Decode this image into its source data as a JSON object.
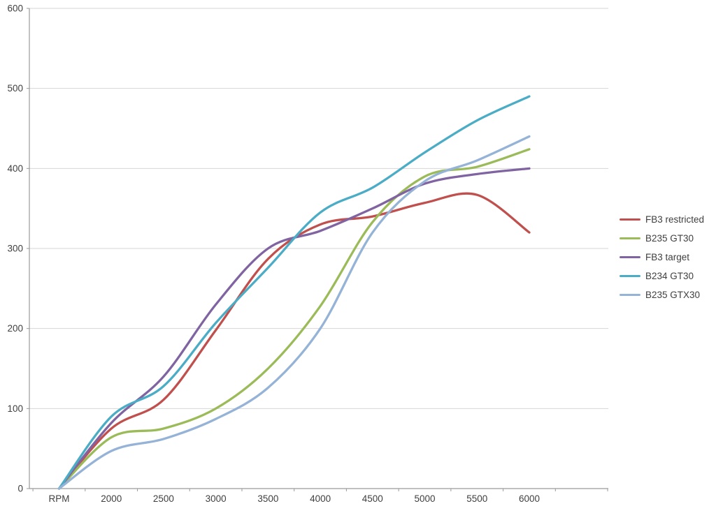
{
  "chart_data": {
    "type": "line",
    "title": "",
    "xlabel": "",
    "ylabel": "",
    "categories": [
      "RPM",
      "2000",
      "2500",
      "3000",
      "3500",
      "4000",
      "4500",
      "5000",
      "5500",
      "6000"
    ],
    "y_ticks": [
      "0",
      "100",
      "200",
      "300",
      "400",
      "500",
      "600"
    ],
    "ylim": [
      0,
      600
    ],
    "grid": true,
    "smoothed_lines": true,
    "legend_position": "right",
    "axis_color": "#9a9a9a",
    "gridline_color": "#d6d6d6",
    "label_color": "#3f3f3f",
    "series": [
      {
        "name": "FB3 restricted",
        "color": "#c0504d",
        "values": [
          0,
          75,
          111,
          198,
          287,
          330,
          340,
          357,
          367,
          320
        ]
      },
      {
        "name": "B235 GT30",
        "color": "#9bbb59",
        "values": [
          0,
          64,
          75,
          100,
          150,
          228,
          333,
          390,
          402,
          424
        ]
      },
      {
        "name": "FB3 target",
        "color": "#8064a2",
        "values": [
          0,
          82,
          140,
          230,
          300,
          322,
          350,
          381,
          393,
          400
        ]
      },
      {
        "name": "B234 GT30",
        "color": "#4bacc6",
        "values": [
          0,
          90,
          128,
          207,
          276,
          345,
          376,
          420,
          460,
          490
        ]
      },
      {
        "name": "B235 GTX30",
        "color": "#95b3d7",
        "values": [
          0,
          47,
          62,
          87,
          126,
          200,
          320,
          384,
          410,
          440
        ]
      }
    ]
  }
}
